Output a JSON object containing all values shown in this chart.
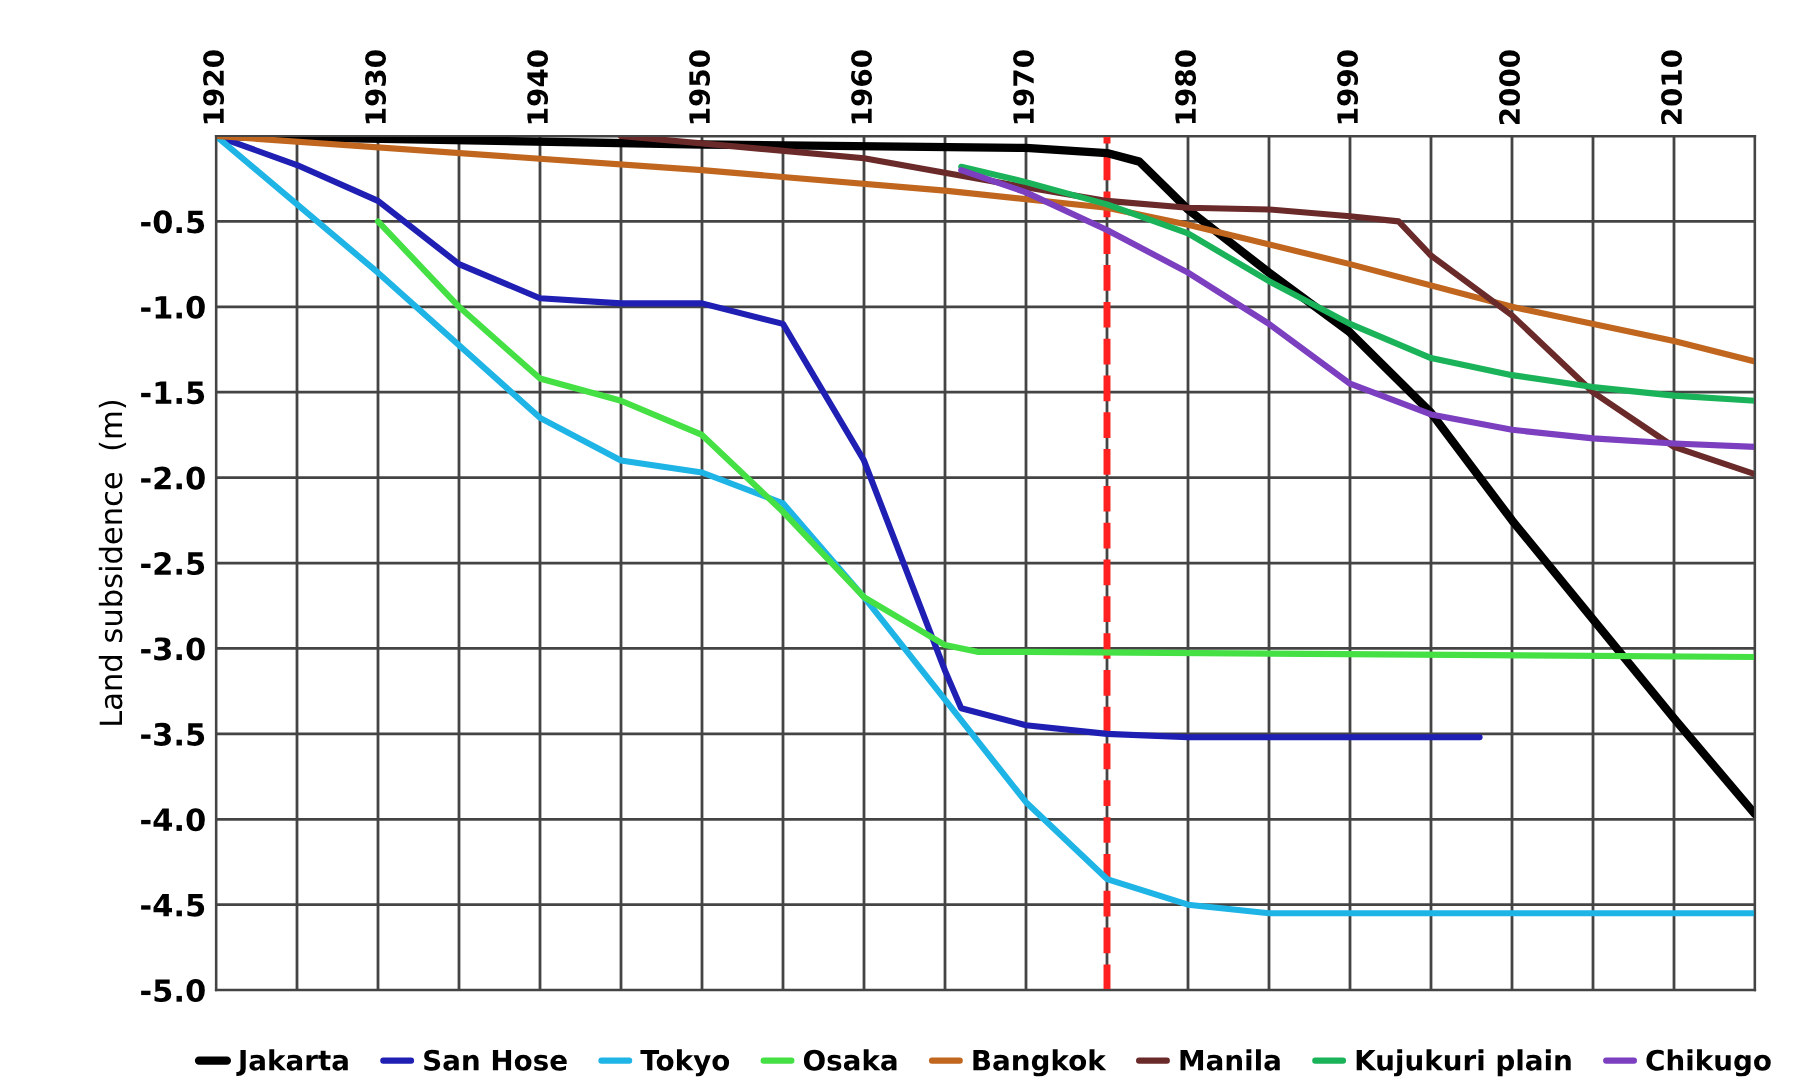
{
  "chart_data": {
    "type": "line",
    "ylabel": "Land subsidence  (m)",
    "xlim": [
      1920,
      2015
    ],
    "ylim": [
      -5.0,
      0
    ],
    "xticks": [
      1920,
      {
        "value": 1925,
        "label": null
      },
      1930,
      {
        "value": 1935,
        "label": null
      },
      1940,
      {
        "value": 1945,
        "label": null
      },
      1950,
      {
        "value": 1955,
        "label": null
      },
      1960,
      {
        "value": 1965,
        "label": null
      },
      1970,
      {
        "value": 1975,
        "label": null
      },
      1980,
      {
        "value": 1985,
        "label": null
      },
      1990,
      {
        "value": 1995,
        "label": null
      },
      2000,
      {
        "value": 2005,
        "label": null
      },
      2010,
      {
        "value": 2015,
        "label": null
      }
    ],
    "yticks": [
      {
        "value": 0,
        "label": null
      },
      {
        "value": -0.5,
        "label": "-0.5"
      },
      {
        "value": -1.0,
        "label": "-1.0"
      },
      {
        "value": -1.5,
        "label": "-1.5"
      },
      {
        "value": -2.0,
        "label": "-2.0"
      },
      {
        "value": -2.5,
        "label": "-2.5"
      },
      {
        "value": -3.0,
        "label": "-3.0"
      },
      {
        "value": -3.5,
        "label": "-3.5"
      },
      {
        "value": -4.0,
        "label": "-4.0"
      },
      {
        "value": -4.5,
        "label": "-4.5"
      },
      {
        "value": -5.0,
        "label": "-5.0"
      }
    ],
    "grid": true,
    "legend": "bottom",
    "ref_lines": [
      {
        "axis": "x",
        "value": 1975,
        "color": "#ff2020",
        "line_style": "dashed"
      }
    ],
    "series": [
      {
        "name": "Jakarta",
        "color": "#000000",
        "x": [
          1920,
          1950,
          1970,
          1975,
          1977,
          1980,
          1985,
          1990,
          1995,
          2000,
          2005,
          2010,
          2015
        ],
        "values": [
          0,
          -0.05,
          -0.07,
          -0.1,
          -0.15,
          -0.43,
          -0.8,
          -1.15,
          -1.62,
          -2.25,
          -2.83,
          -3.41,
          -3.97
        ]
      },
      {
        "name": "San Hose",
        "color": "#1f1fb4",
        "x": [
          1920,
          1925,
          1930,
          1935,
          1940,
          1945,
          1950,
          1955,
          1960,
          1965,
          1966,
          1970,
          1975,
          1980,
          1990,
          1998
        ],
        "values": [
          0,
          -0.17,
          -0.38,
          -0.75,
          -0.95,
          -0.98,
          -0.98,
          -1.1,
          -1.9,
          -3.13,
          -3.35,
          -3.45,
          -3.5,
          -3.52,
          -3.52,
          -3.52
        ]
      },
      {
        "name": "Tokyo",
        "color": "#1eb4e6",
        "x": [
          1920,
          1930,
          1940,
          1945,
          1950,
          1955,
          1960,
          1965,
          1970,
          1975,
          1980,
          1985,
          2015
        ],
        "values": [
          0,
          -0.8,
          -1.65,
          -1.9,
          -1.97,
          -2.15,
          -2.7,
          -3.3,
          -3.9,
          -4.35,
          -4.5,
          -4.55,
          -4.55
        ]
      },
      {
        "name": "Osaka",
        "color": "#44e044",
        "x": [
          1930,
          1935,
          1940,
          1945,
          1950,
          1955,
          1960,
          1965,
          1967,
          1970,
          2015
        ],
        "values": [
          -0.5,
          -1.0,
          -1.42,
          -1.55,
          -1.75,
          -2.2,
          -2.7,
          -2.98,
          -3.02,
          -3.02,
          -3.05
        ]
      },
      {
        "name": "Bangkok",
        "color": "#c0661e",
        "x": [
          1920,
          1950,
          1965,
          1975,
          1980,
          1990,
          2000,
          2010,
          2015
        ],
        "values": [
          0,
          -0.2,
          -0.32,
          -0.42,
          -0.52,
          -0.75,
          -1.0,
          -1.2,
          -1.32
        ]
      },
      {
        "name": "Manila",
        "color": "#6b2a2a",
        "x": [
          1945,
          1960,
          1970,
          1975,
          1980,
          1985,
          1990,
          1993,
          1995,
          2000,
          2005,
          2010,
          2015
        ],
        "values": [
          0,
          -0.13,
          -0.3,
          -0.38,
          -0.42,
          -0.43,
          -0.47,
          -0.5,
          -0.7,
          -1.05,
          -1.5,
          -1.82,
          -1.98
        ]
      },
      {
        "name": "Kujukuri plain",
        "color": "#1bb35a",
        "x": [
          1966,
          1970,
          1975,
          1980,
          1985,
          1990,
          1995,
          2000,
          2005,
          2010,
          2015
        ],
        "values": [
          -0.18,
          -0.27,
          -0.4,
          -0.57,
          -0.85,
          -1.1,
          -1.3,
          -1.4,
          -1.47,
          -1.52,
          -1.55
        ]
      },
      {
        "name": "Chikugo",
        "color": "#7b3fc0",
        "x": [
          1966,
          1970,
          1975,
          1980,
          1985,
          1990,
          1995,
          2000,
          2005,
          2010,
          2015
        ],
        "values": [
          -0.2,
          -0.33,
          -0.55,
          -0.8,
          -1.1,
          -1.45,
          -1.63,
          -1.72,
          -1.77,
          -1.8,
          -1.82
        ]
      }
    ]
  }
}
